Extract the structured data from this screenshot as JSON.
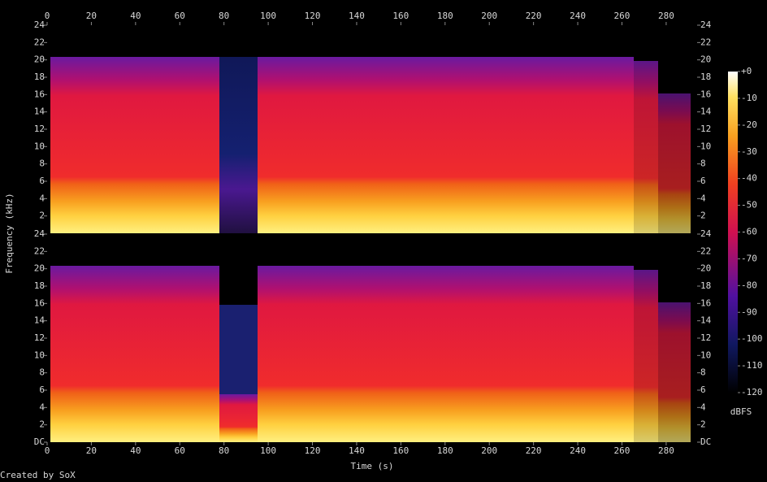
{
  "chart_data": {
    "type": "spectrogram",
    "xlabel": "Time (s)",
    "ylabel": "Frequency (kHz)",
    "xlim": [
      0,
      294
    ],
    "xticks": [
      0,
      20,
      40,
      60,
      80,
      100,
      120,
      140,
      160,
      180,
      200,
      220,
      240,
      260,
      280
    ],
    "channels": [
      {
        "ylim": [
          0,
          24
        ],
        "yticks": [
          2,
          4,
          6,
          8,
          10,
          12,
          14,
          16,
          18,
          20,
          22,
          24
        ]
      },
      {
        "ylim": [
          0,
          24
        ],
        "yticks": [
          {
            "value": 0,
            "label": "DC"
          },
          2,
          4,
          6,
          8,
          10,
          12,
          14,
          16,
          18,
          20,
          22,
          24
        ]
      }
    ],
    "colorbar": {
      "label": "dBFS",
      "lim": [
        -120,
        0
      ],
      "ticks": [
        {
          "value": 0,
          "label": "+0"
        },
        -10,
        -20,
        -30,
        -40,
        -50,
        -60,
        -70,
        -80,
        -90,
        -100,
        -110,
        -120
      ]
    },
    "credit": "Created by SoX"
  }
}
